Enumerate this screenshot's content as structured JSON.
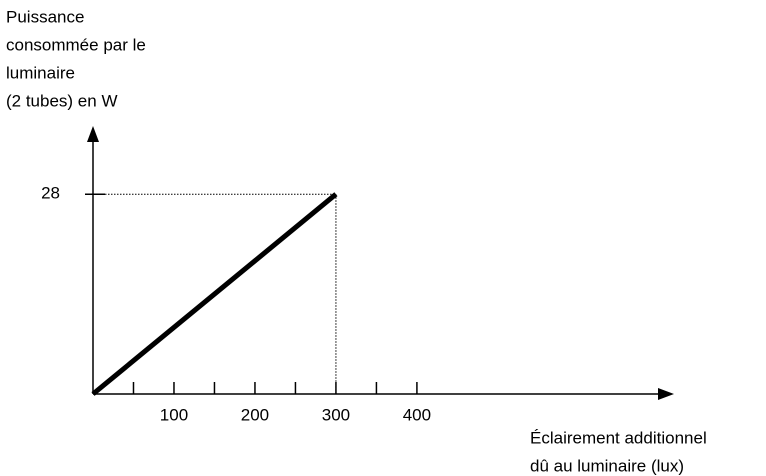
{
  "chart_data": {
    "type": "line",
    "ylabel": [
      "Puissance",
      "consommée par le",
      "luminaire",
      "(2 tubes) en W"
    ],
    "xlabel": [
      "Éclairement additionnel",
      "dû au luminaire (lux)"
    ],
    "x": [
      0,
      300
    ],
    "series": [
      {
        "color": "#000000",
        "values": [
          0,
          28
        ]
      }
    ],
    "xlim": [
      0,
      715
    ],
    "ylim": [
      0,
      37
    ],
    "xticks": [
      100,
      200,
      300,
      400
    ],
    "xminor_ticks": [
      50,
      150,
      250,
      350
    ],
    "yticks": [
      28
    ]
  }
}
